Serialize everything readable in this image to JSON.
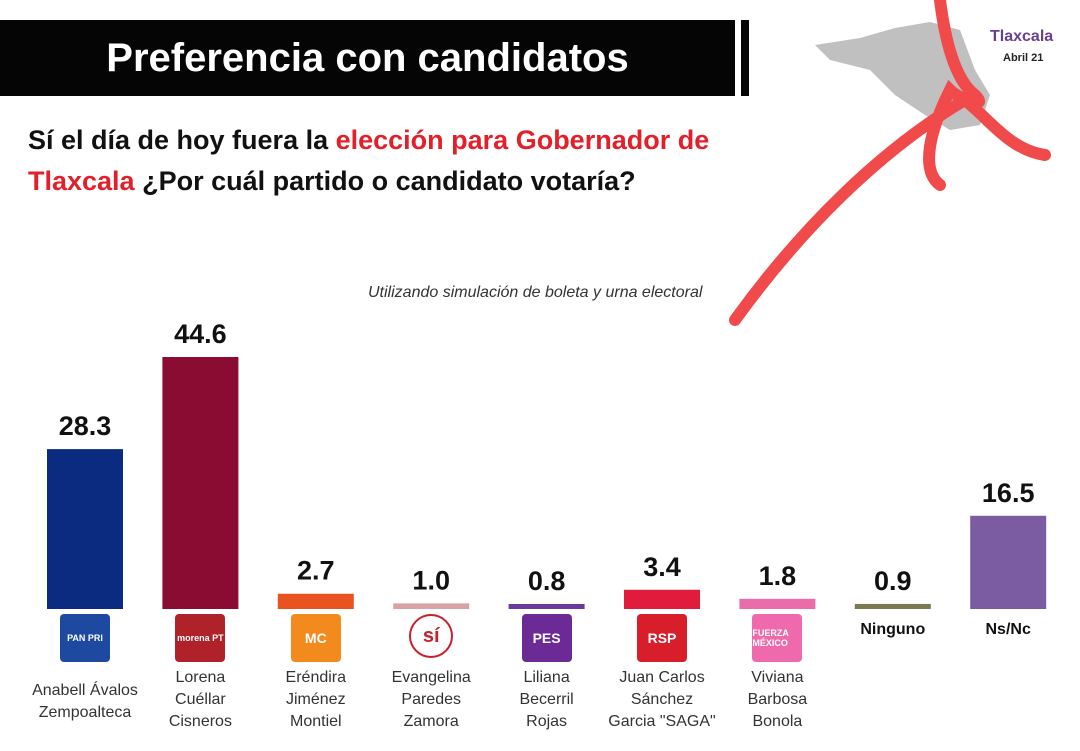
{
  "header": {
    "title": "Preferencia con candidatos",
    "state": "Tlaxcala",
    "date": "Abril 21"
  },
  "question": {
    "part1": "Sí el día de hoy fuera la ",
    "highlight": "elección para Gobernador de Tlaxcala",
    "part2": " ¿Por cuál partido o candidato votaría?"
  },
  "note": "Utilizando simulación de boleta y urna electoral",
  "chart_data": {
    "type": "bar",
    "categories": [
      "Anabell Ávalos Zempoalteca",
      "Lorena Cuéllar Cisneros",
      "Eréndira Jiménez Montiel",
      "Evangelina Paredes Zamora",
      "Liliana Becerril Rojas",
      "Juan Carlos Sánchez Garcia \"SAGA\"",
      "Viviana Barbosa Bonola",
      "Ninguno",
      "Ns/Nc"
    ],
    "values": [
      28.3,
      44.6,
      2.7,
      1.0,
      0.8,
      3.4,
      1.8,
      0.9,
      16.5
    ],
    "value_labels": [
      "28.3",
      "44.6",
      "2.7",
      "1.0",
      "0.8",
      "3.4",
      "1.8",
      "0.9",
      "16.5"
    ],
    "colors": [
      "#0b2b80",
      "#8a0c32",
      "#e8531f",
      "#d8a3a3",
      "#6b3a9b",
      "#e01b3b",
      "#ea6cab",
      "#7b7a52",
      "#7b5ba2"
    ],
    "label_lines": [
      [
        "Anabell Ávalos",
        "Zempoalteca"
      ],
      [
        "Lorena",
        "Cuéllar",
        "Cisneros"
      ],
      [
        "Eréndira",
        "Jiménez",
        "Montiel"
      ],
      [
        "Evangelina",
        "Paredes",
        "Zamora"
      ],
      [
        "Liliana",
        "Becerril",
        "Rojas"
      ],
      [
        "Juan Carlos",
        "Sánchez",
        "Garcia \"SAGA\""
      ],
      [
        "Viviana",
        "Barbosa",
        "Bonola"
      ],
      [
        "Ninguno"
      ],
      [
        "Ns/Nc"
      ]
    ],
    "logos": [
      {
        "text": "PAN PRI",
        "color": "#1d4aa0"
      },
      {
        "text": "morena PT",
        "color": "#b0222a"
      },
      {
        "text": "MC",
        "color": "#f28a1e"
      },
      {
        "text": "sí",
        "color": "#ffffff"
      },
      {
        "text": "PES",
        "color": "#6b2a96"
      },
      {
        "text": "RSP",
        "color": "#d81e2a"
      },
      {
        "text": "FUERZA MÉXICO",
        "color": "#ee6aac"
      },
      null,
      null
    ],
    "ylim": [
      0,
      50
    ],
    "grid": false,
    "legend": "none"
  }
}
